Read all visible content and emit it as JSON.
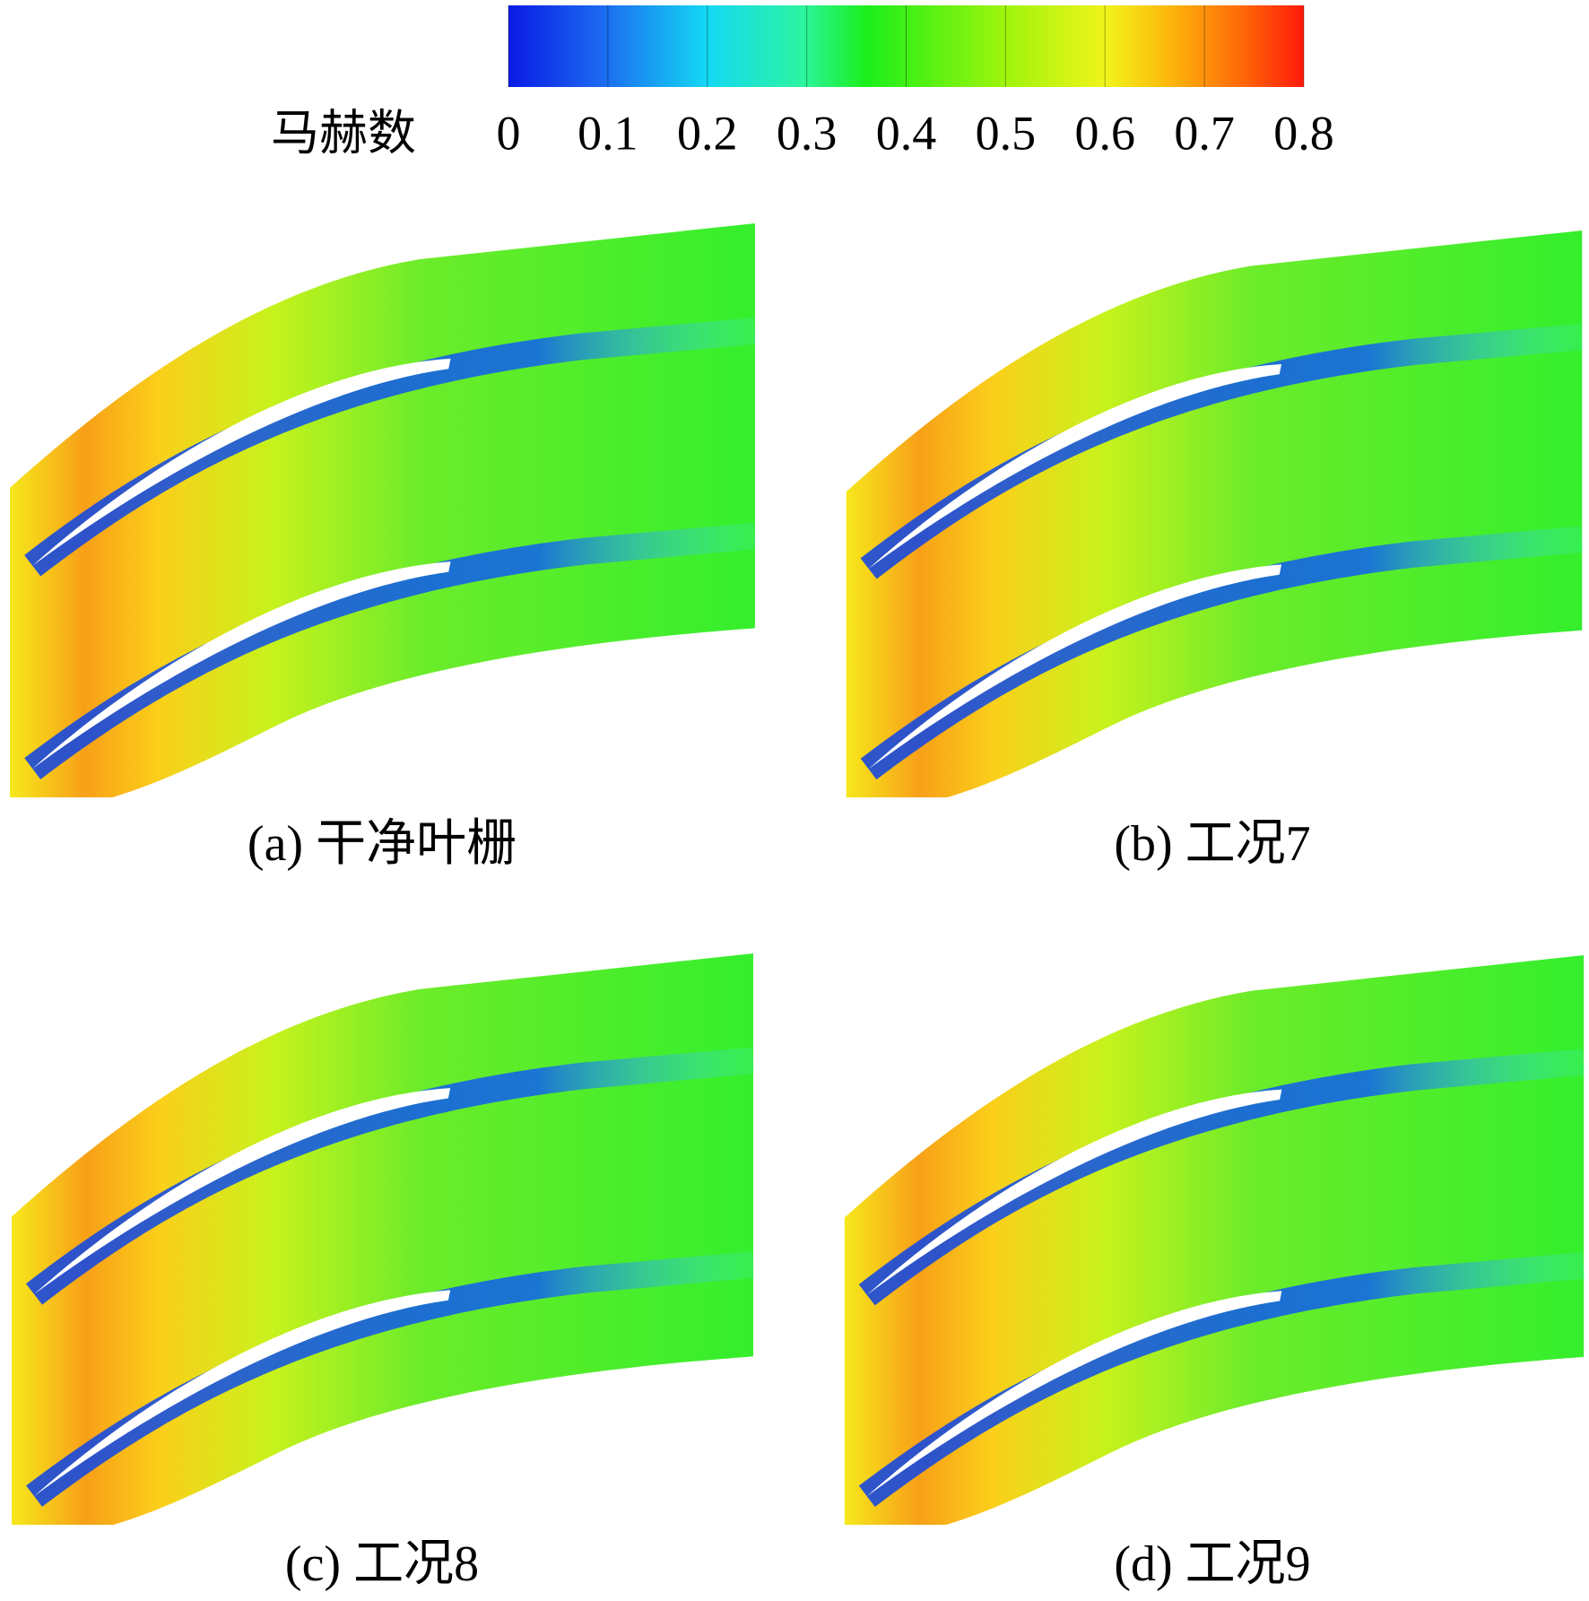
{
  "colorbar": {
    "label": "马赫数",
    "ticks": [
      0,
      0.1,
      0.2,
      0.3,
      0.4,
      0.5,
      0.6,
      0.7,
      0.8
    ]
  },
  "panels": [
    {
      "caption": "(a) 干净叶栅"
    },
    {
      "caption": "(b) 工况7"
    },
    {
      "caption": "(c) 工况8"
    },
    {
      "caption": "(d) 工况9"
    }
  ]
}
